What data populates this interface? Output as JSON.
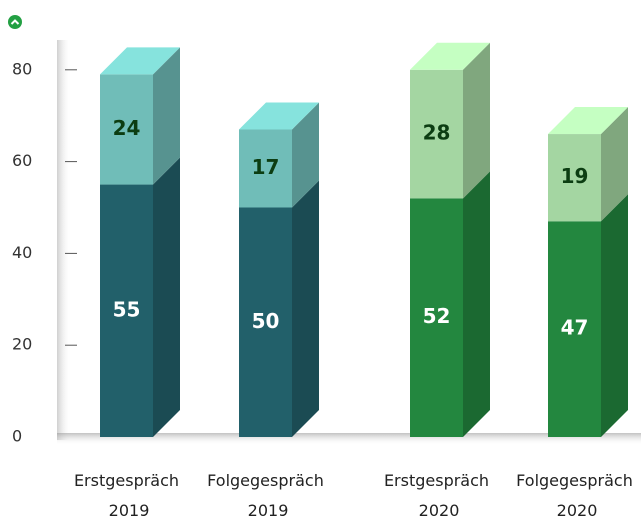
{
  "chart_data": {
    "type": "bar3d_stacked",
    "categories": [
      "Erstgespräch 2019",
      "Folgegespräch 2019",
      "Erstgespräch 2020",
      "Folgegespräch 2020"
    ],
    "series": [
      {
        "values": [
          55,
          50,
          52,
          47
        ],
        "colors": [
          "#22606a",
          "#22606a",
          "#23873f",
          "#23873f"
        ],
        "label_color": "#ffffff"
      },
      {
        "values": [
          24,
          17,
          28,
          19
        ],
        "colors": [
          "#70bdb8",
          "#70bdb8",
          "#a4d6a2",
          "#a4d6a2"
        ],
        "label_color": "#0c3d12"
      }
    ],
    "ylim": [
      0,
      85
    ],
    "yticks": [
      0,
      20,
      40,
      60,
      80
    ]
  }
}
